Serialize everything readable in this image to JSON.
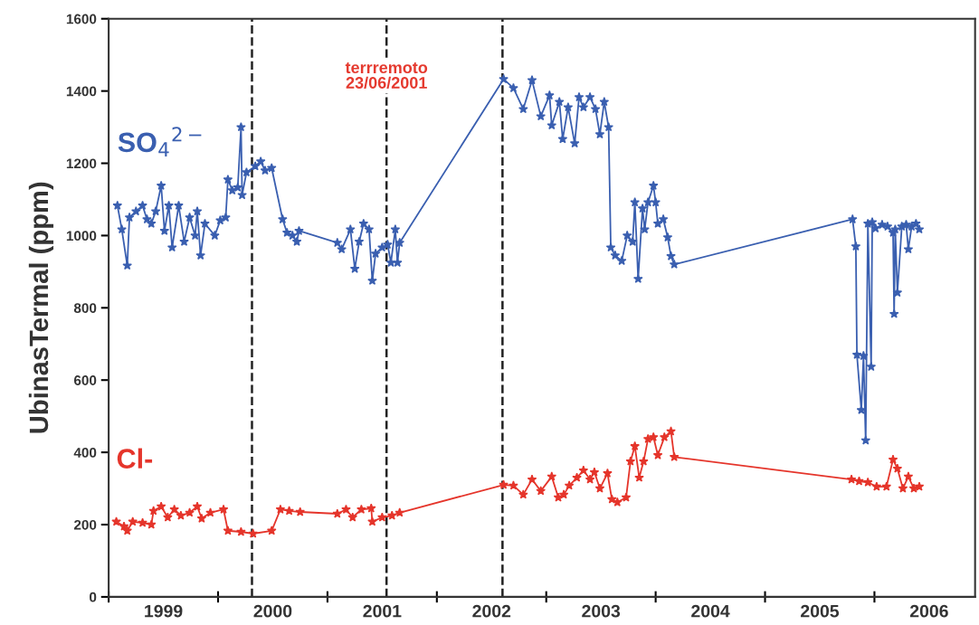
{
  "chart_data": {
    "type": "line",
    "ylabel": "UbinasTermal (ppm)",
    "xlim": [
      1999,
      2006.92
    ],
    "ylim": [
      0,
      1600
    ],
    "yticks": [
      0,
      200,
      400,
      600,
      800,
      1000,
      1200,
      1400,
      1600
    ],
    "xticks": [
      {
        "value": 1999,
        "label": null
      },
      {
        "value": 1999.5,
        "label": "1999"
      },
      {
        "value": 2000,
        "label": null
      },
      {
        "value": 2000.5,
        "label": "2000"
      },
      {
        "value": 2001,
        "label": null
      },
      {
        "value": 2001.5,
        "label": "2001"
      },
      {
        "value": 2002,
        "label": null
      },
      {
        "value": 2002.5,
        "label": "2002"
      },
      {
        "value": 2003,
        "label": null
      },
      {
        "value": 2003.5,
        "label": "2003"
      },
      {
        "value": 2004,
        "label": null
      },
      {
        "value": 2004.5,
        "label": "2004"
      },
      {
        "value": 2005,
        "label": null
      },
      {
        "value": 2005.5,
        "label": "2005"
      },
      {
        "value": 2006,
        "label": null
      },
      {
        "value": 2006.5,
        "label": "2006"
      }
    ],
    "marker": "star",
    "line_style": "solid",
    "grid": false,
    "legend": false,
    "ref_lines": [
      {
        "axis": "x",
        "value": 2000.31,
        "color": "#222222",
        "line_style": "dashed"
      },
      {
        "axis": "x",
        "value": 2001.54,
        "color": "#222222",
        "line_style": "dashed",
        "label": "terrremoto\n23/06/2001"
      },
      {
        "axis": "x",
        "value": 2002.6,
        "color": "#222222",
        "line_style": "dashed"
      }
    ],
    "series": [
      {
        "name": "SO$_{4}$$^{2−}$",
        "color": "#3a5fb0",
        "x": [
          1999.08,
          1999.12,
          1999.17,
          1999.19,
          1999.25,
          1999.31,
          1999.35,
          1999.39,
          1999.43,
          1999.48,
          1999.51,
          1999.55,
          1999.58,
          1999.64,
          1999.69,
          1999.74,
          1999.79,
          1999.81,
          1999.84,
          1999.88,
          1999.97,
          2000.02,
          2000.07,
          2000.09,
          2000.13,
          2000.18,
          2000.21,
          2000.22,
          2000.26,
          2000.34,
          2000.39,
          2000.43,
          2000.49,
          2000.59,
          2000.63,
          2000.68,
          2000.72,
          2000.74,
          2001.09,
          2001.13,
          2001.21,
          2001.25,
          2001.29,
          2001.33,
          2001.38,
          2001.41,
          2001.44,
          2001.5,
          2001.55,
          2001.58,
          2001.62,
          2001.64,
          2001.66,
          2002.61,
          2002.7,
          2002.79,
          2002.87,
          2002.95,
          2003.03,
          2003.05,
          2003.12,
          2003.15,
          2003.2,
          2003.26,
          2003.3,
          2003.34,
          2003.4,
          2003.45,
          2003.49,
          2003.53,
          2003.57,
          2003.59,
          2003.63,
          2003.69,
          2003.74,
          2003.79,
          2003.81,
          2003.84,
          2003.88,
          2003.9,
          2003.93,
          2003.98,
          2004.0,
          2004.02,
          2004.07,
          2004.11,
          2004.14,
          2004.17,
          2005.8,
          2005.83,
          2005.84,
          2005.88,
          2005.9,
          2005.92,
          2005.94,
          2005.97,
          2005.98,
          2006.01,
          2006.07,
          2006.12,
          2006.17,
          2006.18,
          2006.19,
          2006.21,
          2006.25,
          2006.29,
          2006.31,
          2006.34,
          2006.38,
          2006.41
        ],
        "values": [
          1083,
          1017,
          917,
          1050,
          1067,
          1083,
          1045,
          1033,
          1067,
          1138,
          1013,
          1083,
          967,
          1083,
          983,
          1050,
          1000,
          1067,
          945,
          1033,
          1000,
          1042,
          1050,
          1155,
          1125,
          1133,
          1300,
          1112,
          1175,
          1192,
          1205,
          1180,
          1187,
          1045,
          1008,
          1000,
          983,
          1013,
          980,
          962,
          1017,
          908,
          983,
          1033,
          1017,
          875,
          950,
          967,
          975,
          925,
          1017,
          925,
          980,
          1433,
          1408,
          1350,
          1430,
          1330,
          1388,
          1305,
          1370,
          1267,
          1355,
          1255,
          1383,
          1355,
          1383,
          1350,
          1280,
          1370,
          1300,
          967,
          945,
          930,
          1000,
          983,
          1092,
          880,
          1075,
          1017,
          1092,
          1138,
          1092,
          1033,
          1045,
          995,
          943,
          920,
          1045,
          970,
          670,
          517,
          667,
          433,
          1033,
          637,
          1037,
          1020,
          1030,
          1025,
          1008,
          783,
          1017,
          842,
          1025,
          1030,
          962,
          1025,
          1033,
          1017
        ]
      },
      {
        "name": "Cl-",
        "color": "#e5352b",
        "x": [
          1999.07,
          1999.14,
          1999.17,
          1999.22,
          1999.31,
          1999.39,
          1999.41,
          1999.48,
          1999.54,
          1999.6,
          1999.66,
          1999.74,
          1999.81,
          1999.85,
          1999.93,
          2000.05,
          2000.09,
          2000.21,
          2000.32,
          2000.49,
          2000.57,
          2000.65,
          2000.75,
          2001.09,
          2001.17,
          2001.23,
          2001.31,
          2001.4,
          2001.41,
          2001.5,
          2001.59,
          2001.66,
          2002.61,
          2002.7,
          2002.79,
          2002.87,
          2002.95,
          2003.05,
          2003.11,
          2003.16,
          2003.21,
          2003.28,
          2003.34,
          2003.4,
          2003.44,
          2003.49,
          2003.56,
          2003.6,
          2003.65,
          2003.73,
          2003.77,
          2003.81,
          2003.85,
          2003.89,
          2003.93,
          2003.98,
          2004.02,
          2004.08,
          2004.14,
          2004.17,
          2005.79,
          2005.86,
          2005.94,
          2006.02,
          2006.11,
          2006.17,
          2006.21,
          2006.26,
          2006.31,
          2006.36,
          2006.41
        ],
        "values": [
          208,
          195,
          183,
          208,
          205,
          200,
          238,
          250,
          220,
          242,
          225,
          233,
          250,
          217,
          233,
          242,
          183,
          180,
          175,
          183,
          242,
          238,
          235,
          230,
          242,
          220,
          242,
          245,
          208,
          220,
          225,
          233,
          310,
          308,
          283,
          325,
          293,
          333,
          275,
          283,
          308,
          330,
          350,
          325,
          345,
          300,
          342,
          270,
          262,
          275,
          375,
          417,
          330,
          375,
          437,
          442,
          392,
          442,
          458,
          387,
          325,
          320,
          317,
          305,
          305,
          380,
          355,
          300,
          333,
          300,
          305
        ]
      }
    ]
  }
}
